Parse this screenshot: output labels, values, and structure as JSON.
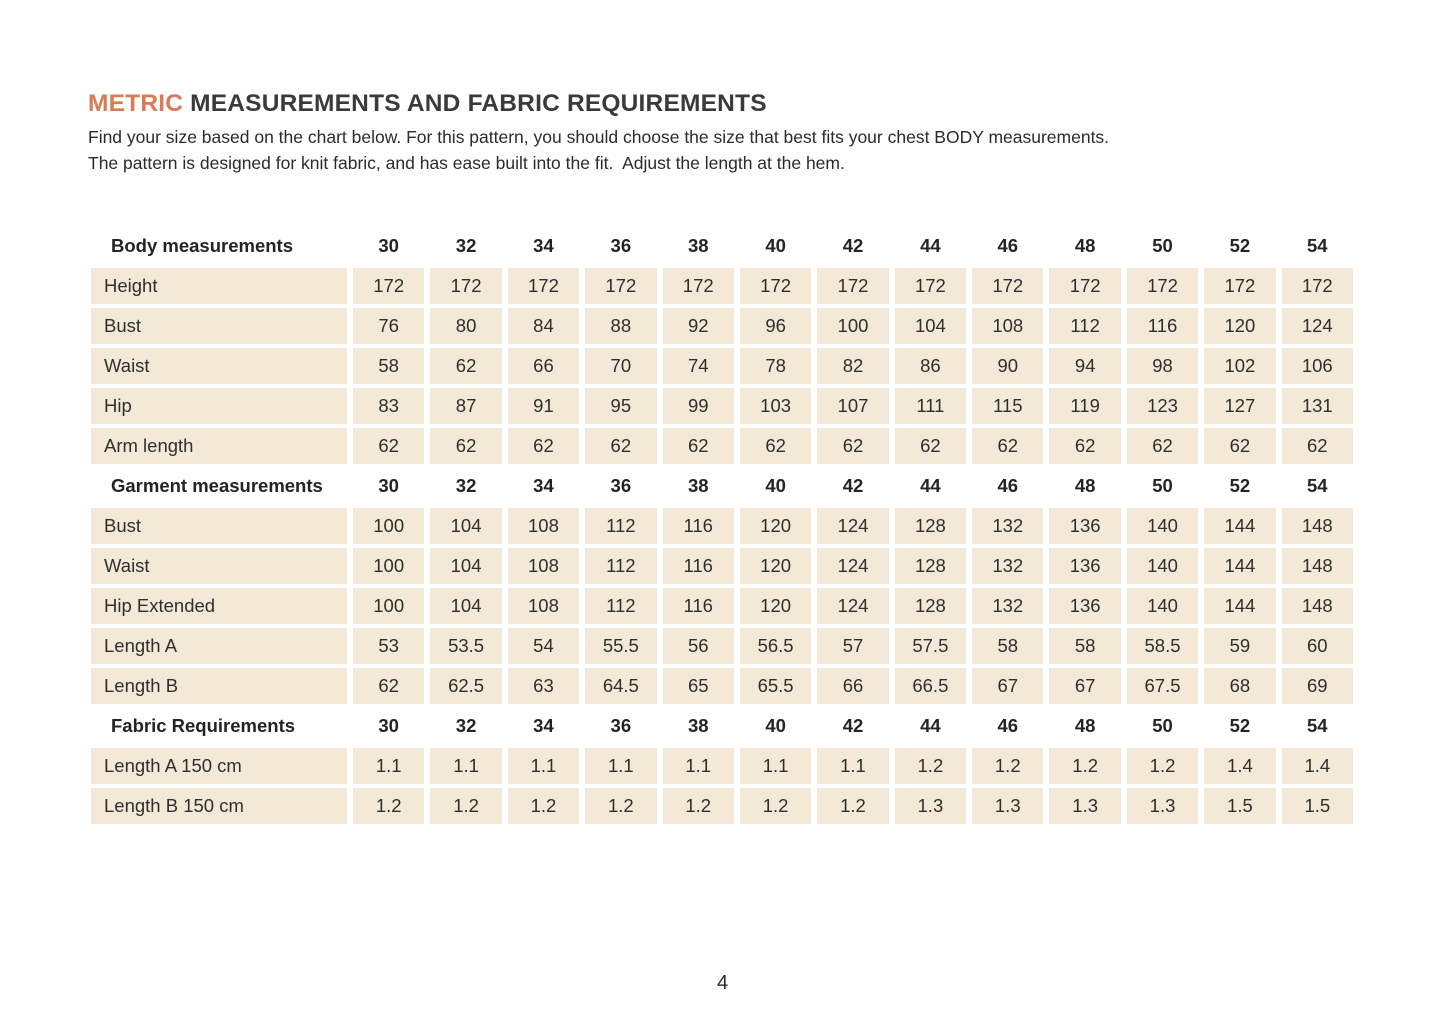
{
  "colors": {
    "accent_orange": "#d87c55",
    "cell_beige": "#f3e9d6",
    "text_dark": "#2f2f2f"
  },
  "header": {
    "title_highlight": "METRIC",
    "title_rest": "MEASUREMENTS AND FABRIC REQUIREMENTS",
    "description_line1": "Find your size based on the chart below. For this pattern, you should choose the size that best fits your chest BODY measurements.",
    "description_line2": "The pattern is designed for knit fabric, and has ease built into the fit.  Adjust the length at the hem."
  },
  "table": {
    "sizes": [
      "30",
      "32",
      "34",
      "36",
      "38",
      "40",
      "42",
      "44",
      "46",
      "48",
      "50",
      "52",
      "54"
    ],
    "sections": [
      {
        "header": "Body measurements",
        "rows": [
          {
            "label": "Height",
            "values": [
              "172",
              "172",
              "172",
              "172",
              "172",
              "172",
              "172",
              "172",
              "172",
              "172",
              "172",
              "172",
              "172"
            ]
          },
          {
            "label": "Bust",
            "values": [
              "76",
              "80",
              "84",
              "88",
              "92",
              "96",
              "100",
              "104",
              "108",
              "112",
              "116",
              "120",
              "124"
            ]
          },
          {
            "label": "Waist",
            "values": [
              "58",
              "62",
              "66",
              "70",
              "74",
              "78",
              "82",
              "86",
              "90",
              "94",
              "98",
              "102",
              "106"
            ]
          },
          {
            "label": "Hip",
            "values": [
              "83",
              "87",
              "91",
              "95",
              "99",
              "103",
              "107",
              "111",
              "115",
              "119",
              "123",
              "127",
              "131"
            ]
          },
          {
            "label": "Arm length",
            "values": [
              "62",
              "62",
              "62",
              "62",
              "62",
              "62",
              "62",
              "62",
              "62",
              "62",
              "62",
              "62",
              "62"
            ]
          }
        ]
      },
      {
        "header": "Garment measurements",
        "rows": [
          {
            "label": "Bust",
            "values": [
              "100",
              "104",
              "108",
              "112",
              "116",
              "120",
              "124",
              "128",
              "132",
              "136",
              "140",
              "144",
              "148"
            ]
          },
          {
            "label": "Waist",
            "values": [
              "100",
              "104",
              "108",
              "112",
              "116",
              "120",
              "124",
              "128",
              "132",
              "136",
              "140",
              "144",
              "148"
            ]
          },
          {
            "label": "Hip Extended",
            "values": [
              "100",
              "104",
              "108",
              "112",
              "116",
              "120",
              "124",
              "128",
              "132",
              "136",
              "140",
              "144",
              "148"
            ]
          },
          {
            "label": "Length A",
            "values": [
              "53",
              "53.5",
              "54",
              "55.5",
              "56",
              "56.5",
              "57",
              "57.5",
              "58",
              "58",
              "58.5",
              "59",
              "60"
            ]
          },
          {
            "label": "Length B",
            "values": [
              "62",
              "62.5",
              "63",
              "64.5",
              "65",
              "65.5",
              "66",
              "66.5",
              "67",
              "67",
              "67.5",
              "68",
              "69"
            ]
          }
        ]
      },
      {
        "header": "Fabric Requirements",
        "rows": [
          {
            "label": "Length A 150 cm",
            "values": [
              "1.1",
              "1.1",
              "1.1",
              "1.1",
              "1.1",
              "1.1",
              "1.1",
              "1.2",
              "1.2",
              "1.2",
              "1.2",
              "1.4",
              "1.4"
            ]
          },
          {
            "label": "Length B 150 cm",
            "values": [
              "1.2",
              "1.2",
              "1.2",
              "1.2",
              "1.2",
              "1.2",
              "1.2",
              "1.3",
              "1.3",
              "1.3",
              "1.3",
              "1.5",
              "1.5"
            ]
          }
        ]
      }
    ]
  },
  "footer": {
    "page_number": "4"
  }
}
